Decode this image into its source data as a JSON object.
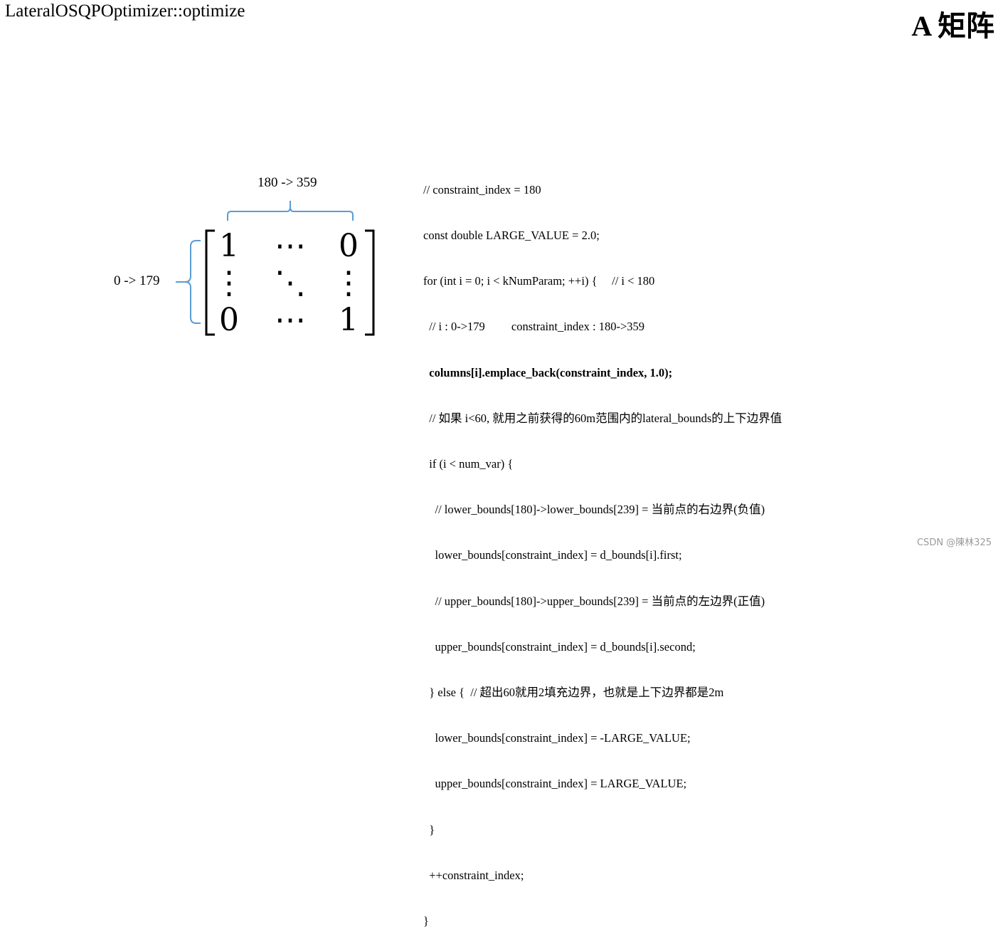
{
  "header": {
    "title": "LateralOSQPOptimizer::optimize",
    "heading": "A 矩阵"
  },
  "matrix": {
    "column_range_label": "180 -> 359",
    "row_range_label": "0 -> 179",
    "cells": {
      "top_left": "1",
      "top_middle": "⋯",
      "top_right": "0",
      "middle_left": "⋮",
      "center": "⋱",
      "middle_right": "⋮",
      "bottom_left": "0",
      "bottom_middle": "⋯",
      "bottom_right": "1"
    },
    "bracket_color": "#5b9bd5"
  },
  "code": {
    "lines": [
      {
        "text": "// constraint_index = 180",
        "bold": false
      },
      {
        "text": "const double LARGE_VALUE = 2.0;",
        "bold": false
      },
      {
        "text": "for (int i = 0; i < kNumParam; ++i) {     // i < 180",
        "bold": false
      },
      {
        "text": "  // i : 0->179         constraint_index : 180->359",
        "bold": false
      },
      {
        "text": "  columns[i].emplace_back(constraint_index, 1.0);",
        "bold": true
      },
      {
        "text": "  // 如果 i<60, 就用之前获得的60m范围内的lateral_bounds的上下边界值",
        "bold": false
      },
      {
        "text": "  if (i < num_var) {",
        "bold": false
      },
      {
        "text": "    // lower_bounds[180]->lower_bounds[239] = 当前点的右边界(负值)",
        "bold": false
      },
      {
        "text": "    lower_bounds[constraint_index] = d_bounds[i].first;",
        "bold": false
      },
      {
        "text": "    // upper_bounds[180]->upper_bounds[239] = 当前点的左边界(正值)",
        "bold": false
      },
      {
        "text": "    upper_bounds[constraint_index] = d_bounds[i].second;",
        "bold": false
      },
      {
        "text": "  } else {  // 超出60就用2填充边界，也就是上下边界都是2m",
        "bold": false
      },
      {
        "text": "    lower_bounds[constraint_index] = -LARGE_VALUE;",
        "bold": false
      },
      {
        "text": "    upper_bounds[constraint_index] = LARGE_VALUE;",
        "bold": false
      },
      {
        "text": "  }",
        "bold": false
      },
      {
        "text": "  ++constraint_index;",
        "bold": false
      },
      {
        "text": "}",
        "bold": false
      }
    ]
  },
  "watermark": "CSDN @陳林325"
}
